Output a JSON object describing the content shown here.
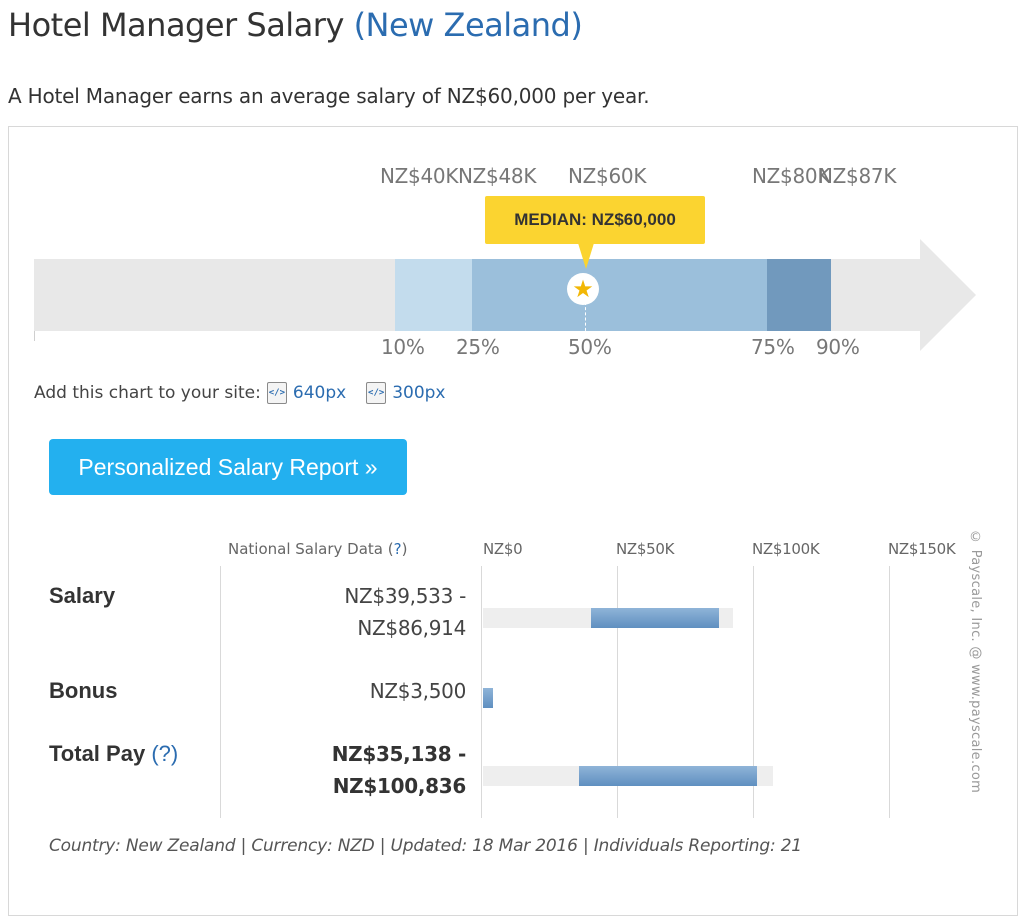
{
  "header": {
    "title": "Hotel Manager Salary",
    "location": "(New Zealand)",
    "intro": "A Hotel Manager earns an average salary of NZ$60,000 per year."
  },
  "percentile_chart": {
    "values": {
      "p10": "NZ$40K",
      "p25": "NZ$48K",
      "p50": "NZ$60K",
      "p75": "NZ$80K",
      "p90": "NZ$87K"
    },
    "labels": {
      "p10": "10%",
      "p25": "25%",
      "p50": "50%",
      "p75": "75%",
      "p90": "90%"
    },
    "median_tooltip": "MEDIAN: NZ$60,000",
    "band_colors": {
      "light": "#c3dced",
      "mid": "#9bbfdb",
      "dark": "#7199bd"
    },
    "arrow_color": "#e8e8e8",
    "star_color": "#f2b705"
  },
  "embed": {
    "label": "Add this chart to your site:",
    "icon_glyph": "</>",
    "options": [
      "640px",
      "300px"
    ]
  },
  "report_button": {
    "label": "Personalized Salary Report »"
  },
  "salary_table": {
    "header_label": "National Salary Data (",
    "header_help": "?",
    "header_close": ")",
    "axis_ticks": [
      "NZ$0",
      "NZ$50K",
      "NZ$100K",
      "NZ$150K"
    ],
    "rows": [
      {
        "label": "Salary",
        "value_line1": "NZ$39,533 -",
        "value_line2": "NZ$86,914",
        "range_min": 39533,
        "range_max": 86914
      },
      {
        "label": "Bonus",
        "value_line1": "NZ$3,500",
        "value_line2": "",
        "range_min": 0,
        "range_max": 3500
      },
      {
        "label": "Total Pay",
        "help": "(?)",
        "value_line1": "NZ$35,138 -",
        "value_line2": "NZ$100,836",
        "range_min": 35138,
        "range_max": 100836
      }
    ]
  },
  "copyright": "© Payscale, Inc. @ www.payscale.com",
  "footer": "Country: New Zealand | Currency: NZD | Updated: 18 Mar 2016 | Individuals Reporting: 21"
}
